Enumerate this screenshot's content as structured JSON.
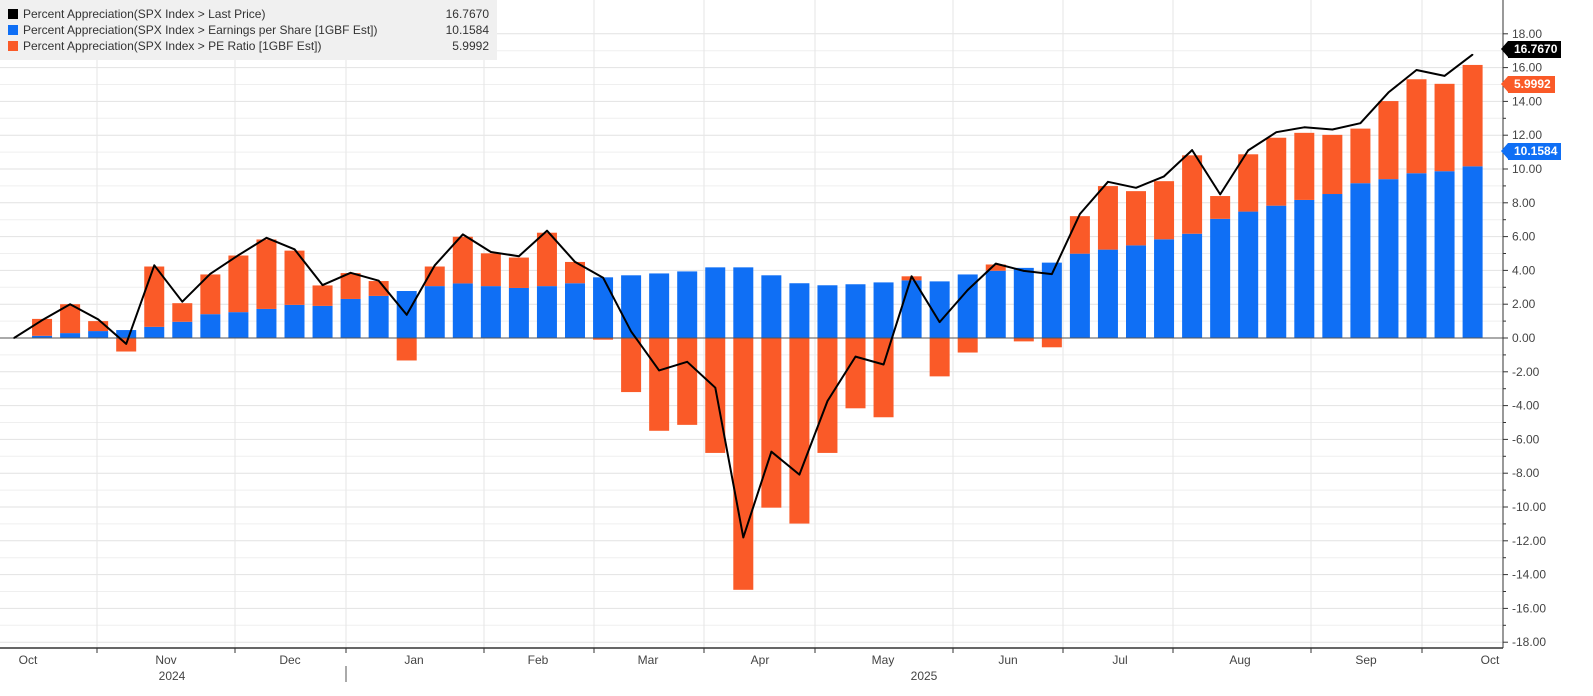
{
  "legend": [
    {
      "label": "Percent Appreciation(SPX Index > Last Price)",
      "value": "16.7670",
      "color": "#000000"
    },
    {
      "label": "Percent Appreciation(SPX Index > Earnings per Share [1GBF Est])",
      "value": "10.1584",
      "color": "#0f6ff5"
    },
    {
      "label": "Percent Appreciation(SPX Index > PE Ratio [1GBF Est])",
      "value": "5.9992",
      "color": "#fa5a28"
    }
  ],
  "tags": {
    "price": "16.7670",
    "pe": "5.9992",
    "eps": "10.1584"
  },
  "chart_data": {
    "type": "bar",
    "stacked": true,
    "title": "",
    "xlabel": "",
    "ylabel": "",
    "ylim": [
      -18,
      18
    ],
    "y_axis_position": "right",
    "grid": true,
    "legend_position": "top-left",
    "y_ticks": [
      "18.00",
      "16.00",
      "14.00",
      "12.00",
      "10.00",
      "8.00",
      "6.00",
      "4.00",
      "2.00",
      "0.00",
      "-2.00",
      "-4.00",
      "-6.00",
      "-8.00",
      "-10.00",
      "-12.00",
      "-14.00",
      "-16.00",
      "-18.00"
    ],
    "x_month_labels": [
      "Oct",
      "Nov",
      "Dec",
      "Jan",
      "Feb",
      "Mar",
      "Apr",
      "May",
      "Jun",
      "Jul",
      "Aug",
      "Sep",
      "Oct"
    ],
    "x_year_labels": [
      "2024",
      "2025"
    ],
    "dates": [
      "2024-10-04",
      "2024-10-11",
      "2024-10-18",
      "2024-10-25",
      "2024-11-01",
      "2024-11-08",
      "2024-11-15",
      "2024-11-22",
      "2024-11-29",
      "2024-12-06",
      "2024-12-13",
      "2024-12-20",
      "2024-12-27",
      "2025-01-03",
      "2025-01-10",
      "2025-01-17",
      "2025-01-24",
      "2025-01-31",
      "2025-02-07",
      "2025-02-14",
      "2025-02-21",
      "2025-02-28",
      "2025-03-07",
      "2025-03-14",
      "2025-03-21",
      "2025-03-28",
      "2025-04-04",
      "2025-04-11",
      "2025-04-18",
      "2025-04-25",
      "2025-05-02",
      "2025-05-09",
      "2025-05-16",
      "2025-05-23",
      "2025-05-30",
      "2025-06-06",
      "2025-06-13",
      "2025-06-20",
      "2025-06-27",
      "2025-07-04",
      "2025-07-11",
      "2025-07-18",
      "2025-07-25",
      "2025-08-01",
      "2025-08-08",
      "2025-08-15",
      "2025-08-22",
      "2025-08-29",
      "2025-09-05",
      "2025-09-12",
      "2025-09-19",
      "2025-09-26",
      "2025-10-03"
    ],
    "series": [
      {
        "name": "Percent Appreciation(SPX Index > Last Price)",
        "type": "line",
        "color": "#000000",
        "values": [
          0,
          1.05,
          2.0,
          1.1,
          -0.35,
          4.3,
          2.15,
          3.8,
          4.9,
          5.93,
          5.25,
          3.13,
          3.86,
          3.39,
          1.37,
          4.3,
          6.13,
          5.09,
          4.84,
          6.35,
          4.5,
          3.57,
          0.39,
          -1.92,
          -1.41,
          -2.94,
          -11.8,
          -6.73,
          -8.08,
          -3.73,
          -1.1,
          -1.57,
          3.65,
          0.94,
          2.84,
          4.4,
          3.97,
          3.78,
          7.34,
          9.24,
          8.89,
          9.56,
          11.12,
          8.5,
          11.1,
          12.18,
          12.47,
          12.34,
          12.71,
          14.53,
          15.86,
          15.51,
          16.767
        ]
      },
      {
        "name": "Percent Appreciation(SPX Index > Earnings per Share [1GBF Est])",
        "type": "bar",
        "color": "#0f6ff5",
        "values": [
          null,
          0.13,
          0.29,
          0.41,
          0.47,
          0.66,
          0.96,
          1.41,
          1.53,
          1.72,
          1.96,
          1.9,
          2.31,
          2.49,
          2.78,
          3.07,
          3.23,
          3.07,
          2.96,
          3.07,
          3.24,
          3.59,
          3.71,
          3.82,
          3.94,
          4.18,
          4.18,
          3.71,
          3.24,
          3.12,
          3.18,
          3.29,
          3.41,
          3.35,
          3.76,
          3.98,
          4.15,
          4.46,
          4.99,
          5.23,
          5.48,
          5.84,
          6.17,
          7.05,
          7.48,
          7.83,
          8.17,
          8.52,
          9.16,
          9.4,
          9.75,
          9.87,
          10.1584
        ]
      },
      {
        "name": "Percent Appreciation(SPX Index > PE Ratio [1GBF Est])",
        "type": "bar",
        "color": "#fa5a28",
        "values": [
          null,
          1.0,
          1.71,
          0.59,
          -0.8,
          3.57,
          1.1,
          2.35,
          3.35,
          4.11,
          3.21,
          1.21,
          1.53,
          0.88,
          -1.33,
          1.16,
          2.76,
          1.94,
          1.8,
          3.16,
          1.26,
          -0.1,
          -3.2,
          -5.49,
          -5.14,
          -6.8,
          -14.9,
          -10.04,
          -10.98,
          -6.8,
          -4.16,
          -4.69,
          0.24,
          -2.27,
          -0.86,
          0.37,
          -0.2,
          -0.55,
          2.22,
          3.76,
          3.21,
          3.44,
          4.64,
          1.35,
          3.39,
          4.02,
          3.97,
          3.5,
          3.23,
          4.62,
          5.56,
          5.17,
          5.9992
        ]
      }
    ]
  }
}
